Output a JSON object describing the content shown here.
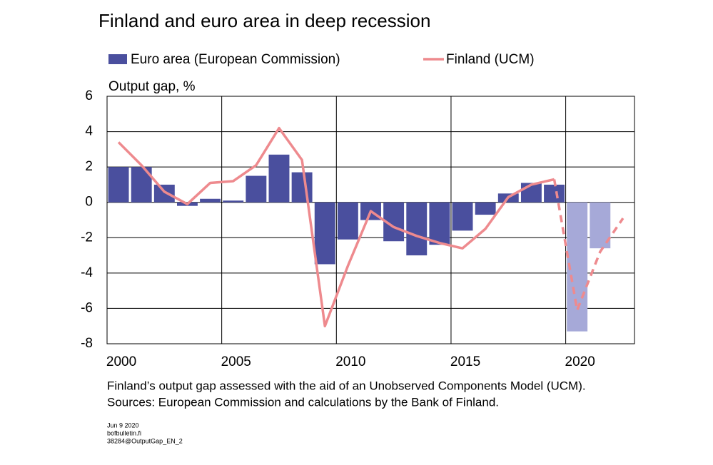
{
  "chart_data": {
    "type": "bar-line",
    "title": "Finland and euro area in deep recession",
    "y_label": "Output gap, %",
    "categories": [
      "2000",
      null,
      null,
      null,
      null,
      "2005",
      null,
      null,
      null,
      null,
      "2010",
      null,
      null,
      null,
      null,
      "2015",
      null,
      null,
      null,
      null,
      "2020",
      null,
      null
    ],
    "ylim": [
      -8,
      6
    ],
    "yticks": [
      -8,
      -6,
      -4,
      -2,
      0,
      2,
      4,
      6
    ],
    "grid": true,
    "series": [
      {
        "name": "Euro area (European Commission)",
        "type": "bar",
        "color": "#4a4f9e",
        "colors": [
          "#4a4f9e",
          "#4a4f9e",
          "#4a4f9e",
          "#4a4f9e",
          "#4a4f9e",
          "#4a4f9e",
          "#4a4f9e",
          "#4a4f9e",
          "#4a4f9e",
          "#4a4f9e",
          "#4a4f9e",
          "#4a4f9e",
          "#4a4f9e",
          "#4a4f9e",
          "#4a4f9e",
          "#4a4f9e",
          "#4a4f9e",
          "#4a4f9e",
          "#4a4f9e",
          "#4a4f9e",
          "#a6a9d8",
          "#a6a9d8",
          null
        ],
        "values": [
          2.0,
          2.0,
          1.0,
          -0.2,
          0.2,
          0.1,
          1.5,
          2.7,
          1.7,
          -3.5,
          -2.1,
          -1.0,
          -2.2,
          -3.0,
          -2.4,
          -1.6,
          -0.7,
          0.5,
          1.1,
          1.0,
          -7.3,
          -2.6,
          null
        ]
      },
      {
        "name": "Finland (UCM)",
        "type": "line",
        "color": "#ee8a8e",
        "dashed_from": 19,
        "values": [
          3.4,
          2.1,
          0.6,
          -0.1,
          1.1,
          1.2,
          2.1,
          4.2,
          2.4,
          -7.0,
          -3.6,
          -0.5,
          -1.4,
          -1.9,
          -2.3,
          -2.6,
          -1.5,
          0.3,
          1.0,
          1.3,
          -6.1,
          -2.8,
          -0.9
        ]
      }
    ],
    "note": "Finland’s output gap assessed with the aid of an Unobserved Components Model (UCM).",
    "source": "Sources: European Commission and calculations by the Bank of Finland.",
    "footer": [
      "Jun 9 2020",
      "bofbulletin.fi",
      "38284@OutputGap_EN_2"
    ]
  }
}
